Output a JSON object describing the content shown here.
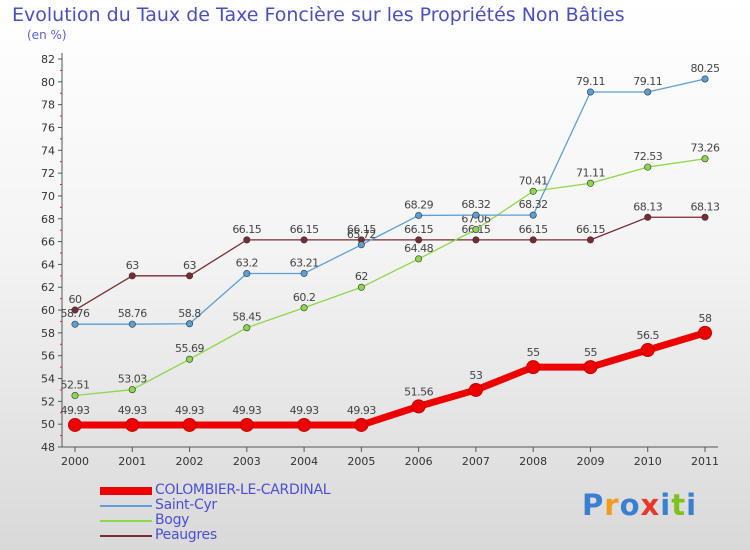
{
  "title": "Evolution du Taux de Taxe Foncière sur les Propriétés Non Bâties",
  "subtitle": "(en %)",
  "logo": {
    "text": "Proxiti",
    "colors": [
      "#3b7fd0",
      "#f29a1e",
      "#3b7fd0",
      "#e8382b",
      "#3b7fd0",
      "#7fc11f",
      "#3b7fd0"
    ]
  },
  "chart_data": {
    "type": "line",
    "categories": [
      "2000",
      "2001",
      "2002",
      "2003",
      "2004",
      "2005",
      "2006",
      "2007",
      "2008",
      "2009",
      "2010",
      "2011"
    ],
    "ylim": [
      48,
      82
    ],
    "yticks": [
      "48",
      "50",
      "52",
      "54",
      "56",
      "58",
      "60",
      "62",
      "64",
      "66",
      "68",
      "70",
      "72",
      "74",
      "76",
      "78",
      "80",
      "82"
    ],
    "grid": false,
    "legend_position": "bottom-left",
    "series": [
      {
        "name": "Peaugres",
        "color": "#7a2a33",
        "values": [
          60,
          63,
          63,
          66.15,
          66.15,
          66.15,
          66.15,
          66.15,
          66.15,
          66.15,
          68.13,
          68.13
        ],
        "labels": [
          "60",
          "63",
          "63",
          "66.15",
          "66.15",
          "66.15",
          "66.15",
          "66.15",
          "66.15",
          "66.15",
          "68.13",
          "68.13"
        ]
      },
      {
        "name": "Bogy",
        "color": "#8dd84a",
        "values": [
          52.51,
          53.03,
          55.69,
          58.45,
          60.2,
          62,
          64.48,
          67.06,
          70.41,
          71.11,
          72.53,
          73.26
        ],
        "labels": [
          "52.51",
          "53.03",
          "55.69",
          "58.45",
          "60.2",
          "62",
          "64.48",
          "67.06",
          "70.41",
          "71.11",
          "72.53",
          "73.26"
        ]
      },
      {
        "name": "Saint-Cyr",
        "color": "#5b9fd6",
        "values": [
          58.76,
          58.76,
          58.8,
          63.2,
          63.21,
          65.72,
          68.29,
          68.32,
          68.32,
          79.11,
          79.11,
          80.25
        ],
        "labels": [
          "58.76",
          "58.76",
          "58.8",
          "63.2",
          "63.21",
          "65.72",
          "68.29",
          "68.32",
          "68.32",
          "79.11",
          "79.11",
          "80.25"
        ]
      },
      {
        "name": "COLOMBIER-LE-CARDINAL",
        "color": "#ee0000",
        "values": [
          49.93,
          49.93,
          49.93,
          49.93,
          49.93,
          49.93,
          51.56,
          53,
          55,
          55,
          56.5,
          58
        ],
        "labels": [
          "49.93",
          "49.93",
          "49.93",
          "49.93",
          "49.93",
          "49.93",
          "51.56",
          "53",
          "55",
          "55",
          "56.5",
          "58"
        ]
      }
    ],
    "legend": [
      "COLOMBIER-LE-CARDINAL",
      "Saint-Cyr",
      "Bogy",
      "Peaugres"
    ]
  }
}
